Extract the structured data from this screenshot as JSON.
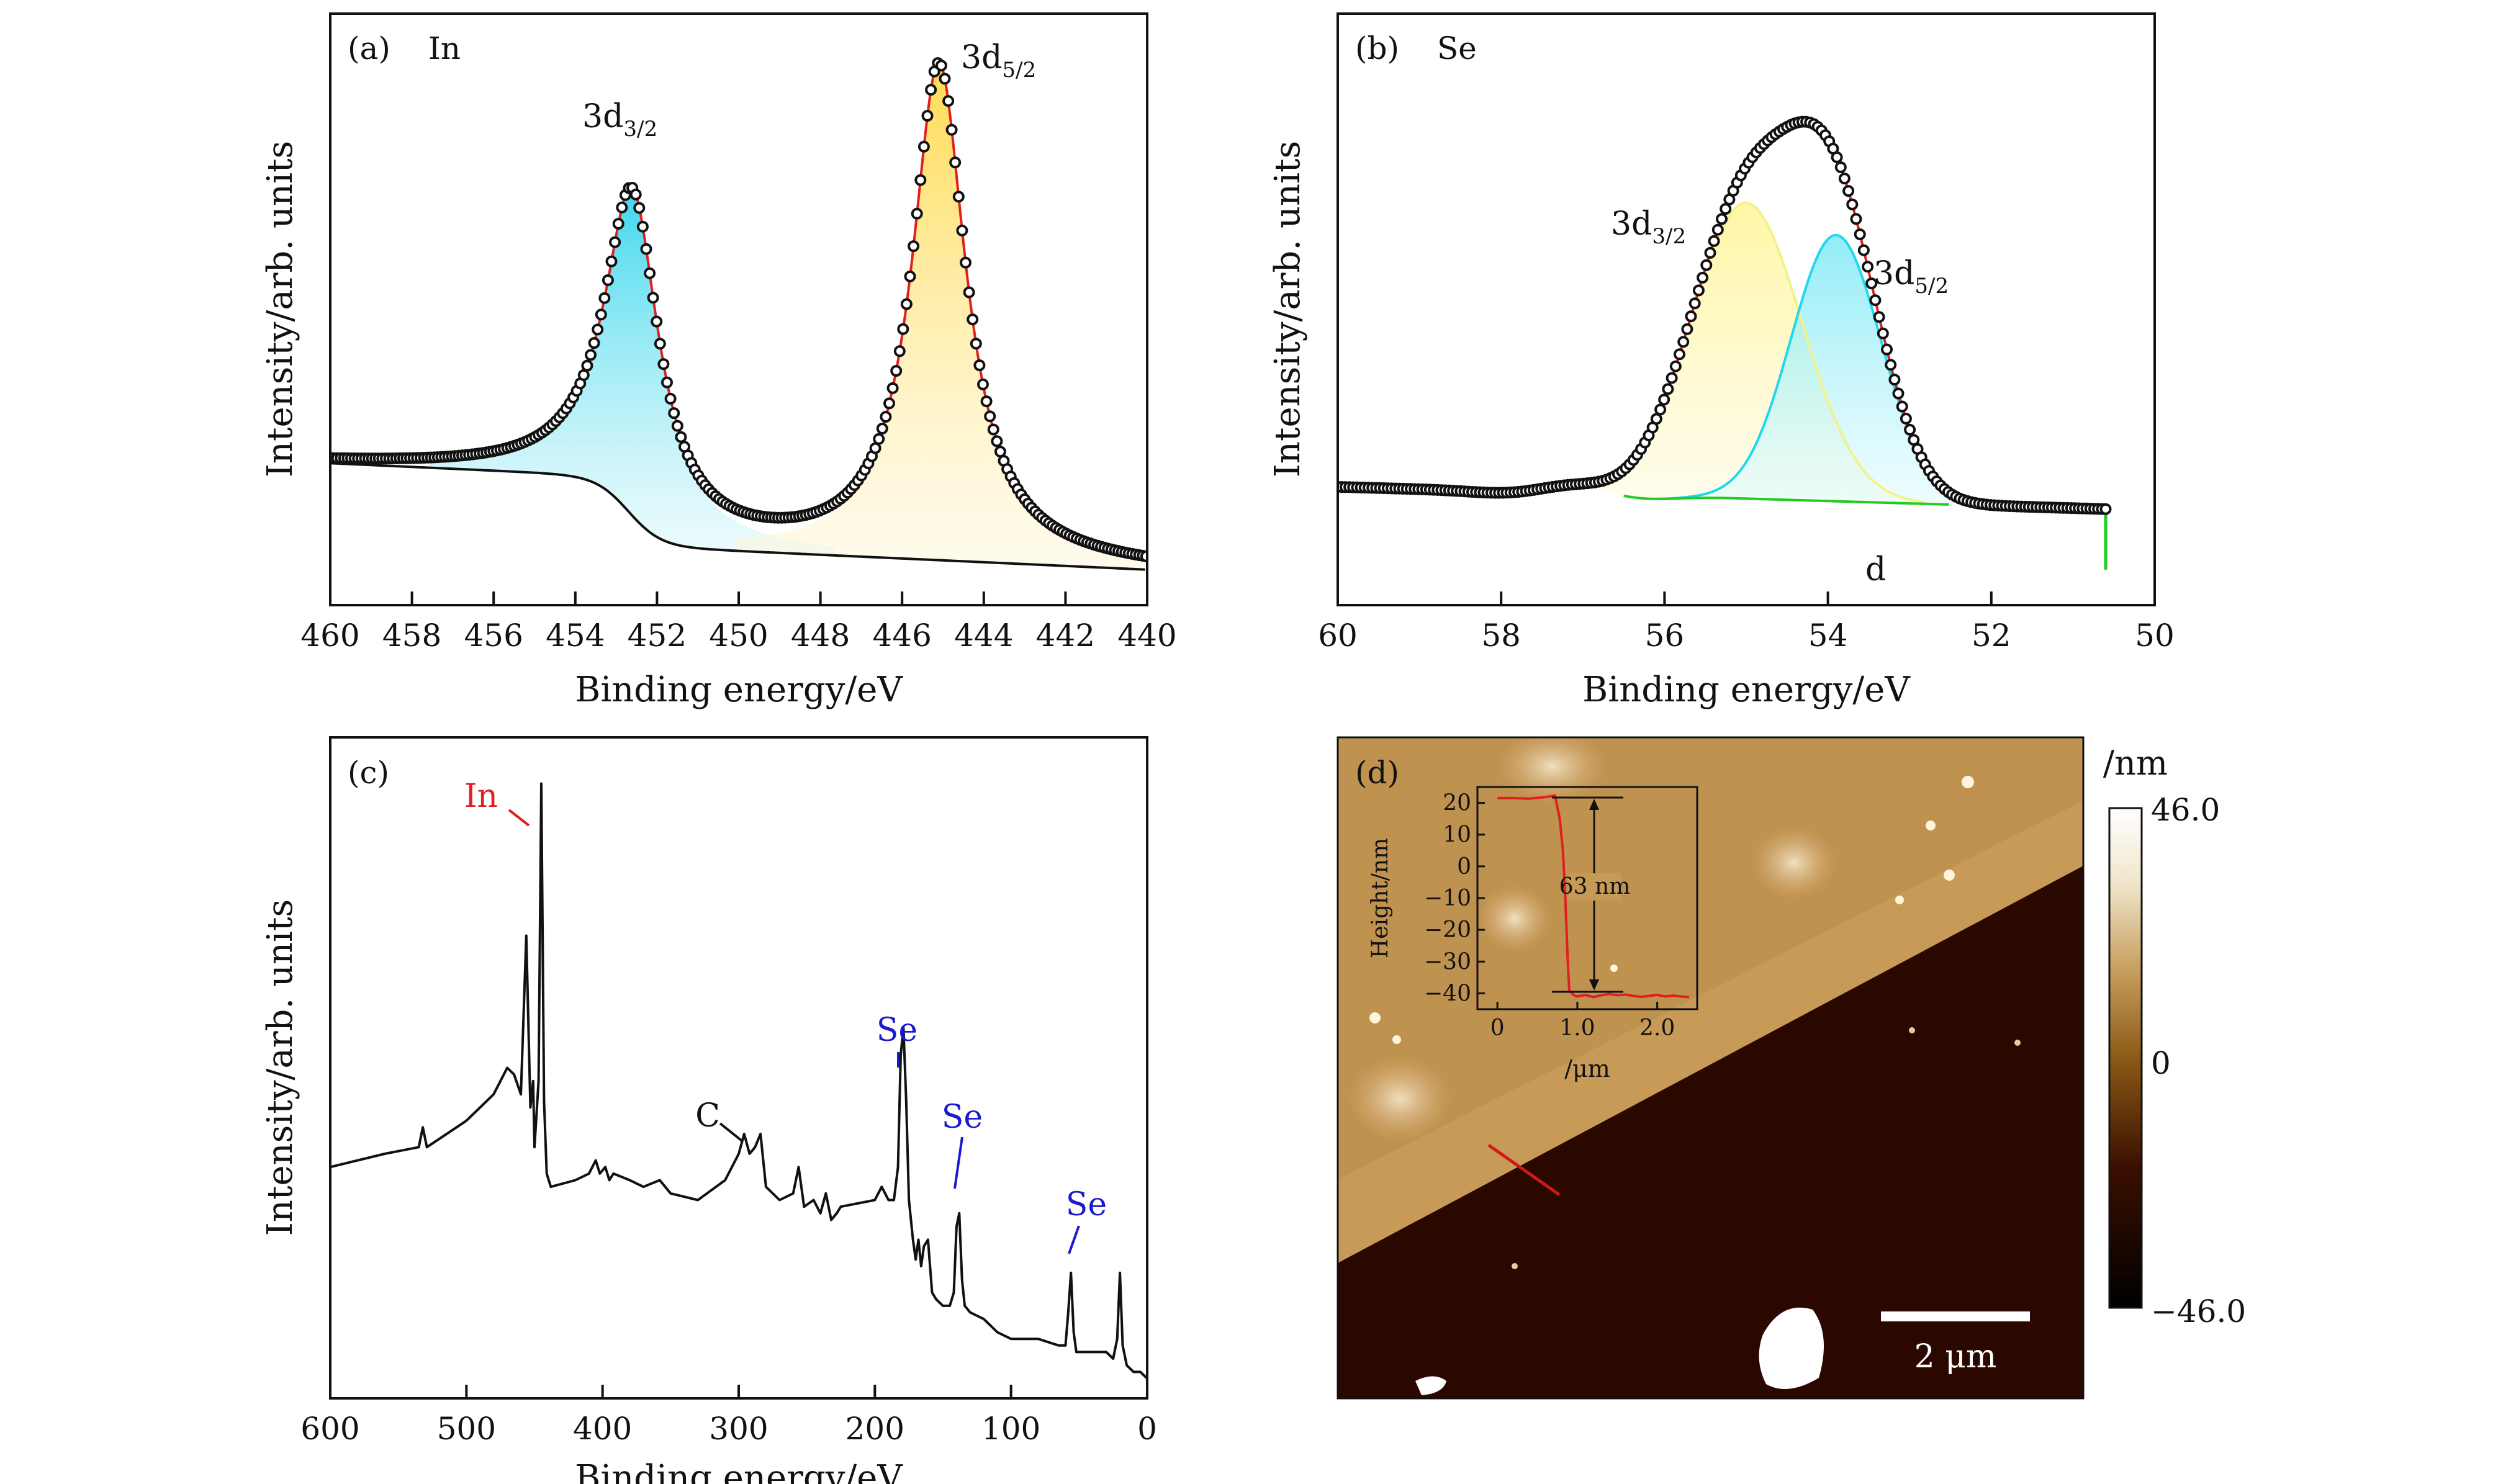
{
  "chart_data": [
    {
      "panel": "a",
      "type": "line",
      "panel_label": "(a)",
      "element": "In",
      "xlabel": "Binding energy/eV",
      "ylabel": "Intensity/arb. units",
      "xlim": [
        460,
        440
      ],
      "x_reversed": true,
      "x_ticks": [
        "460",
        "458",
        "456",
        "454",
        "452",
        "450",
        "448",
        "446",
        "444",
        "442",
        "440"
      ],
      "y_ticks_visible": false,
      "baseline": {
        "start": 0.24,
        "end": 0.06
      },
      "peaks": [
        {
          "label_main": "3d",
          "label_sub": "3/2",
          "center": 452.6,
          "height": 0.545,
          "fwhm": 1.6,
          "fill": "#7fe3f0"
        },
        {
          "label_main": "3d",
          "label_sub": "5/2",
          "center": 445.1,
          "height": 0.835,
          "fwhm": 1.6,
          "fill": "#fff3b0"
        }
      ],
      "series": [
        {
          "name": "",
          "style": "open circles",
          "color": "#000000"
        },
        {
          "name": "",
          "style": "fit line",
          "color": "#e02020"
        },
        {
          "name": "",
          "style": "background line",
          "color": "#000000"
        }
      ]
    },
    {
      "panel": "b",
      "type": "line",
      "panel_label": "(b)",
      "element": "Se",
      "xlabel": "Binding energy/eV",
      "ylabel": "Intensity/arb. units",
      "xlim": [
        60,
        50
      ],
      "x_reversed": true,
      "x_ticks": [
        "60",
        "58",
        "56",
        "54",
        "52",
        "50"
      ],
      "y_ticks_visible": false,
      "baseline": {
        "start": 0.2,
        "end": 0.16
      },
      "data_end": 50.6,
      "peaks": [
        {
          "label_main": "3d",
          "label_sub": "3/2",
          "center": 55.0,
          "height": 0.5,
          "fwhm": 1.6,
          "fill": "#fffbb0",
          "line": "#f2f28a"
        },
        {
          "label_main": "3d",
          "label_sub": "5/2",
          "center": 53.9,
          "height": 0.45,
          "fwhm": 1.3,
          "fill": "#b7f3fb",
          "line": "#20d8ee"
        }
      ],
      "series": [
        {
          "name": "",
          "style": "open circles",
          "color": "#000000"
        },
        {
          "name": "",
          "style": "fit line",
          "color": "#e02020"
        },
        {
          "name": "",
          "style": "background line",
          "color": "#22cc22"
        }
      ],
      "annotation": "d"
    },
    {
      "panel": "c",
      "type": "line",
      "panel_label": "(c)",
      "xlabel": "Binding energy/eV",
      "ylabel": "Intensity/arb. units",
      "xlim": [
        600,
        0
      ],
      "x_reversed": true,
      "x_ticks": [
        "600",
        "500",
        "400",
        "300",
        "200",
        "100",
        "0"
      ],
      "y_ticks_visible": false,
      "x": [
        600,
        560,
        535,
        532,
        529,
        500,
        480,
        470,
        465,
        460,
        456,
        453,
        451,
        450,
        447,
        445,
        443,
        441,
        438,
        420,
        410,
        405,
        402,
        398,
        395,
        392,
        380,
        370,
        358,
        350,
        330,
        310,
        300,
        296,
        292,
        288,
        284,
        280,
        270,
        260,
        256,
        252,
        245,
        240,
        236,
        232,
        228,
        225,
        200,
        195,
        190,
        186,
        183,
        181,
        179,
        177,
        175,
        172,
        170,
        168,
        166,
        164,
        161,
        158,
        155,
        150,
        145,
        142,
        140,
        138,
        136,
        134,
        130,
        120,
        115,
        110,
        100,
        80,
        65,
        60,
        58,
        56,
        54,
        52,
        48,
        40,
        30,
        25,
        22,
        20,
        18,
        15,
        10,
        5,
        0
      ],
      "y": [
        0.35,
        0.37,
        0.38,
        0.41,
        0.38,
        0.42,
        0.46,
        0.5,
        0.49,
        0.46,
        0.7,
        0.44,
        0.48,
        0.38,
        0.48,
        0.93,
        0.45,
        0.34,
        0.32,
        0.33,
        0.34,
        0.36,
        0.34,
        0.35,
        0.33,
        0.34,
        0.33,
        0.32,
        0.33,
        0.31,
        0.3,
        0.33,
        0.37,
        0.4,
        0.37,
        0.38,
        0.4,
        0.32,
        0.3,
        0.31,
        0.35,
        0.29,
        0.3,
        0.28,
        0.31,
        0.27,
        0.28,
        0.29,
        0.3,
        0.32,
        0.3,
        0.3,
        0.35,
        0.52,
        0.56,
        0.45,
        0.3,
        0.24,
        0.21,
        0.24,
        0.2,
        0.23,
        0.24,
        0.16,
        0.15,
        0.14,
        0.14,
        0.16,
        0.26,
        0.28,
        0.18,
        0.14,
        0.13,
        0.12,
        0.11,
        0.1,
        0.09,
        0.09,
        0.08,
        0.08,
        0.13,
        0.19,
        0.1,
        0.07,
        0.07,
        0.07,
        0.07,
        0.06,
        0.09,
        0.19,
        0.08,
        0.05,
        0.04,
        0.04,
        0.03
      ],
      "annotations": [
        {
          "text": "In",
          "color": "#e02020",
          "x": 445
        },
        {
          "text": "C",
          "color": "#111111",
          "x": 296
        },
        {
          "text": "Se",
          "color": "#1a1ad0",
          "x": 179
        },
        {
          "text": "Se",
          "color": "#1a1ad0",
          "x": 138
        },
        {
          "text": "Se",
          "color": "#1a1ad0",
          "x": 54
        }
      ]
    },
    {
      "panel": "d",
      "type": "heatmap",
      "panel_label": "(d)",
      "colorbar": {
        "unit": "/nm",
        "max_label": "46.0",
        "mid_label": "0",
        "min_label": "−46.0",
        "max": 46.0,
        "min": -46.0,
        "colors": [
          "#000000",
          "#3a0f00",
          "#8c5a16",
          "#c8a060",
          "#f0e6cc",
          "#ffffff"
        ]
      },
      "scale_bar": "2 μm",
      "inset": {
        "type": "line",
        "xlabel": "/μm",
        "ylabel": "Height/nm",
        "xlim": [
          -0.25,
          2.5
        ],
        "ylim": [
          -45,
          25
        ],
        "x_ticks": [
          "0",
          "1.0",
          "2.0"
        ],
        "y_ticks": [
          "20",
          "10",
          "0",
          "−10",
          "−20",
          "−30",
          "−40"
        ],
        "step_label": "63 nm",
        "x": [
          0,
          0.2,
          0.4,
          0.5,
          0.6,
          0.72,
          0.78,
          0.82,
          0.85,
          0.88,
          0.9,
          0.95,
          1.0,
          1.1,
          1.2,
          1.3,
          1.4,
          1.5,
          1.6,
          1.7,
          1.8,
          1.9,
          2.0,
          2.1,
          2.2,
          2.3,
          2.4
        ],
        "y": [
          21.5,
          21.5,
          21.3,
          21.6,
          21.8,
          22.3,
          15,
          5,
          -10,
          -30,
          -39,
          -40.5,
          -41,
          -40.5,
          -41.2,
          -40.6,
          -40.2,
          -40.6,
          -40.4,
          -40.8,
          -41.1,
          -40.8,
          -40.5,
          -41,
          -40.7,
          -41,
          -41.2
        ],
        "line_color": "#e02020"
      }
    }
  ]
}
